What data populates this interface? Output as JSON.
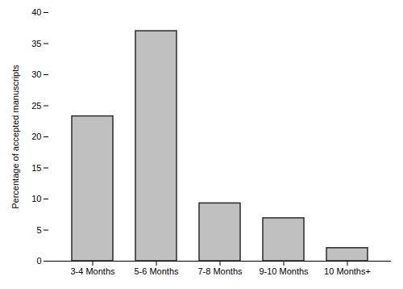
{
  "chart_data": {
    "type": "bar",
    "categories": [
      "3-4 Months",
      "5-6 Months",
      "7-8 Months",
      "9-10 Months",
      "10 Months+"
    ],
    "values": [
      23.3,
      37.0,
      9.3,
      6.9,
      2.1
    ],
    "color": "#c0c0c0",
    "ylabel": "Percentage of accepted manuscripts",
    "ylim": [
      0,
      40
    ],
    "yticks": [
      0,
      5,
      10,
      15,
      20,
      25,
      30,
      35,
      40
    ],
    "grid": false
  }
}
